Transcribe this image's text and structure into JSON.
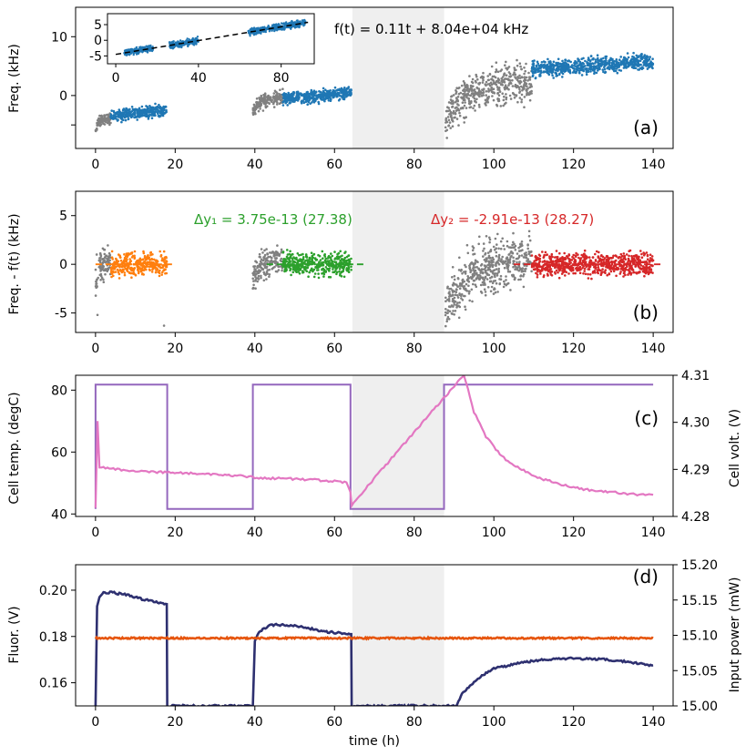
{
  "colors": {
    "gray": "#808080",
    "blue": "#1f77b4",
    "orange": "#ff7f0e",
    "green": "#2ca02c",
    "red": "#d62728",
    "purple": "#9467bd",
    "pink": "#e377c2",
    "navy": "#2e3070",
    "vermilion": "#e6550d",
    "shade": "#efefef"
  },
  "chart_data": [
    {
      "id": "a",
      "type": "scatter",
      "panel_label": "(a)",
      "ylabel": "Freq. (kHz)",
      "xlim": [
        -5,
        145
      ],
      "ylim": [
        -9,
        15
      ],
      "xticks": [
        0,
        20,
        40,
        60,
        80,
        100,
        120,
        140
      ],
      "yticks": [
        -5,
        0,
        10
      ],
      "shaded_x": [
        64.5,
        87.5
      ],
      "fit_annotation": "f(t) = 0.11t + 8.04e+04 kHz",
      "segments": [
        {
          "series": "transient (gray)",
          "x_range": [
            0,
            3.8
          ],
          "y_range": [
            -6.5,
            -3.5
          ]
        },
        {
          "series": "selected (blue)",
          "x_range": [
            3.8,
            17.9
          ],
          "y_range": [
            -4.5,
            -1.5
          ]
        },
        {
          "series": "transient (gray)",
          "x_range": [
            39.5,
            47
          ],
          "y_range": [
            -3.5,
            0
          ]
        },
        {
          "series": "selected (blue)",
          "x_range": [
            47,
            64.2
          ],
          "y_range": [
            -1.6,
            1.5
          ]
        },
        {
          "series": "transient (gray)",
          "x_range": [
            87.8,
            109.5
          ],
          "y_range": [
            -6.4,
            3.2
          ]
        },
        {
          "series": "selected (blue)",
          "x_range": [
            109.5,
            140
          ],
          "y_range": [
            3.2,
            7.0
          ]
        }
      ],
      "inset": {
        "xlim": [
          -4,
          96
        ],
        "ylim": [
          -7.5,
          8.5
        ],
        "xticks": [
          0,
          40,
          80
        ],
        "yticks": [
          -5,
          0,
          5
        ],
        "fit_line": {
          "slope": 0.11,
          "y_at_x0": -4.5
        },
        "point_ranges": [
          [
            4,
            18
          ],
          [
            26,
            40
          ],
          [
            64,
            92
          ]
        ]
      }
    },
    {
      "id": "b",
      "type": "scatter",
      "panel_label": "(b)",
      "ylabel": "Freq. - f(t) (kHz)",
      "xlim": [
        -5,
        145
      ],
      "ylim": [
        -7,
        7.5
      ],
      "xticks": [
        0,
        20,
        40,
        60,
        80,
        100,
        120,
        140
      ],
      "yticks": [
        -5,
        0,
        5
      ],
      "shaded_x": [
        64.5,
        87.5
      ],
      "delta1": {
        "label": "Δy₁ = 3.75e-13 (27.38)",
        "color_key": "green"
      },
      "delta2": {
        "label": "Δy₂ = -2.91e-13 (28.27)",
        "color_key": "red"
      },
      "segments": [
        {
          "series": "transient (gray)",
          "x_range": [
            0,
            3.8
          ],
          "y_range": [
            -3.5,
            1.2
          ]
        },
        {
          "series": "segment 1 (orange)",
          "x_range": [
            3.8,
            17.9
          ],
          "y_range": [
            -1.6,
            1.6
          ]
        },
        {
          "series": "transient (gray)",
          "x_range": [
            39.5,
            47
          ],
          "y_range": [
            -2.8,
            1.4
          ]
        },
        {
          "series": "segment 2 (green)",
          "x_range": [
            47,
            64.2
          ],
          "y_range": [
            -1.7,
            1.7
          ]
        },
        {
          "series": "transient (gray)",
          "x_range": [
            87.8,
            109.5
          ],
          "y_range": [
            -6.3,
            1.4
          ]
        },
        {
          "series": "segment 3 (red)",
          "x_range": [
            109.5,
            140
          ],
          "y_range": [
            -1.7,
            1.7
          ]
        }
      ],
      "dashed_means": [
        {
          "color_key": "orange",
          "x_range": [
            0,
            19.5
          ],
          "y": 0
        },
        {
          "color_key": "green",
          "x_range": [
            43,
            68
          ],
          "y": 0
        },
        {
          "color_key": "red",
          "x_range": [
            105,
            142.5
          ],
          "y": 0
        }
      ]
    },
    {
      "id": "c",
      "type": "line",
      "panel_label": "(c)",
      "ylabel_left": "Cell temp. (degC)",
      "ylabel_right": "Cell volt. (V)",
      "xlim": [
        -5,
        145
      ],
      "ylim_left": [
        39.2,
        84.8
      ],
      "ylim_right": [
        4.28,
        4.31
      ],
      "xticks": [
        0,
        20,
        40,
        60,
        80,
        100,
        120,
        140
      ],
      "yticks_left": [
        40,
        60,
        80
      ],
      "yticks_right": [
        4.28,
        4.29,
        4.3,
        4.31
      ],
      "shaded_x": [
        64.5,
        87.5
      ],
      "series": [
        {
          "name": "Cell volt. (V)",
          "axis": "right",
          "color_key": "purple",
          "x": [
            0,
            0,
            18,
            18,
            39.5,
            39.5,
            64,
            64,
            87.5,
            87.5,
            140
          ],
          "y": [
            4.2816,
            4.308,
            4.308,
            4.2816,
            4.2816,
            4.308,
            4.308,
            4.2816,
            4.2816,
            4.308,
            4.308
          ]
        },
        {
          "name": "Cell temp. (degC)",
          "axis": "left",
          "color_key": "pink",
          "x": [
            0,
            0.5,
            1,
            2,
            4,
            8,
            12,
            17.9,
            39.5,
            40,
            42,
            48,
            55,
            60,
            63,
            64,
            64.3,
            92.5,
            95,
            98,
            102,
            106,
            110,
            115,
            120,
            125,
            130,
            135,
            140
          ],
          "y": [
            42,
            70,
            55,
            55,
            54.7,
            54.1,
            53.7,
            53.5,
            52,
            51.5,
            51.6,
            51.4,
            51,
            50.5,
            50.2,
            47,
            43,
            85,
            73,
            65,
            58.5,
            55,
            52.2,
            50.2,
            48.5,
            47.6,
            47,
            46.4,
            46.2
          ]
        }
      ]
    },
    {
      "id": "d",
      "type": "line",
      "panel_label": "(d)",
      "ylabel_left": "Fluor. (V)",
      "ylabel_right": "Input power (mW)",
      "xlabel": "time (h)",
      "xlim": [
        -5,
        145
      ],
      "ylim_left": [
        0.15,
        0.211
      ],
      "ylim_right": [
        15.0,
        15.2
      ],
      "xticks": [
        0,
        20,
        40,
        60,
        80,
        100,
        120,
        140
      ],
      "yticks_left": [
        0.16,
        0.18,
        0.2
      ],
      "yticks_right": [
        15.0,
        15.05,
        15.1,
        15.15,
        15.2
      ],
      "shaded_x": [
        64.5,
        87.5
      ],
      "series": [
        {
          "name": "Fluor. (V)",
          "axis": "left",
          "color_key": "navy",
          "x": [
            0,
            0.4,
            1,
            2,
            4,
            8,
            12,
            17.9,
            18,
            39.5,
            40,
            41,
            44,
            48,
            52,
            58,
            64.2,
            64.3,
            90.5,
            92,
            96,
            100,
            106,
            112,
            120,
            128,
            134,
            140
          ],
          "y": [
            0.15,
            0.193,
            0.197,
            0.199,
            0.199,
            0.198,
            0.196,
            0.194,
            0.15,
            0.15,
            0.178,
            0.182,
            0.185,
            0.185,
            0.184,
            0.182,
            0.181,
            0.15,
            0.15,
            0.155,
            0.162,
            0.166,
            0.1685,
            0.17,
            0.1705,
            0.17,
            0.169,
            0.1675
          ]
        },
        {
          "name": "Input power (mW)",
          "axis": "right",
          "color_key": "vermilion",
          "x": [
            0,
            140
          ],
          "y": [
            15.096,
            15.096
          ]
        }
      ]
    }
  ]
}
